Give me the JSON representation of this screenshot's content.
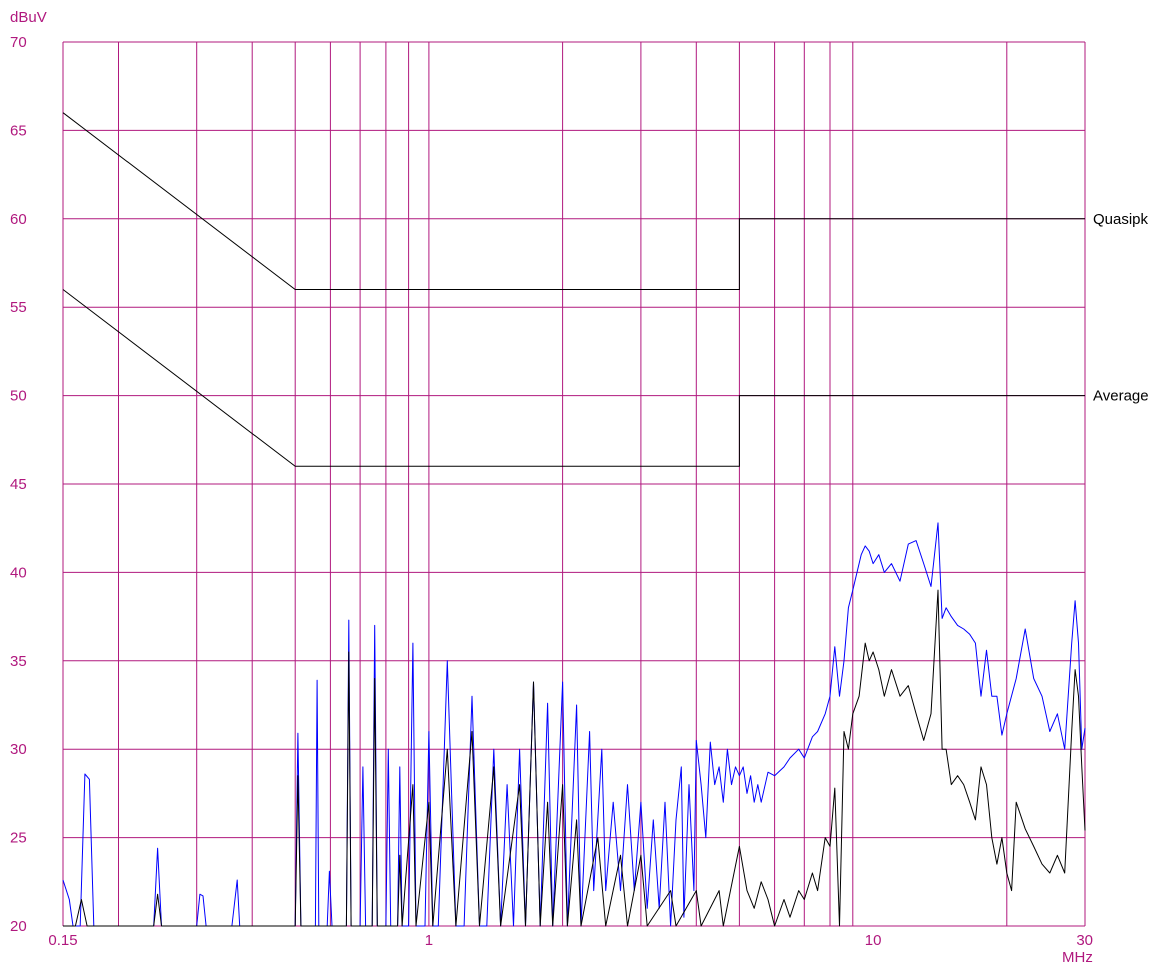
{
  "chart_data": {
    "type": "line",
    "title": "",
    "ylabel": "dBuV",
    "xlabel": "MHz",
    "x_scale": "log",
    "xlim": [
      0.15,
      30
    ],
    "ylim": [
      20,
      70
    ],
    "grid": true,
    "x_tick_labels": [
      "0.15",
      "1",
      "10",
      "30"
    ],
    "y_tick_labels": [
      "20",
      "25",
      "30",
      "35",
      "40",
      "45",
      "50",
      "55",
      "60",
      "65",
      "70"
    ],
    "colors": {
      "grid": "#b0187e",
      "axis_text": "#b0187e",
      "limit": "#000000",
      "peak": "#0000ff",
      "average_trace": "#000000"
    },
    "limits": [
      {
        "name": "Quasipk",
        "points": [
          [
            0.15,
            66
          ],
          [
            0.5,
            56
          ],
          [
            5,
            56
          ],
          [
            5,
            60
          ],
          [
            30,
            60
          ]
        ]
      },
      {
        "name": "Average",
        "points": [
          [
            0.15,
            56
          ],
          [
            0.5,
            46
          ],
          [
            5,
            46
          ],
          [
            5,
            50
          ],
          [
            30,
            50
          ]
        ]
      }
    ],
    "series": [
      {
        "color": "#0000ff",
        "points": [
          [
            0.15,
            22.6
          ],
          [
            0.155,
            21.5
          ],
          [
            0.158,
            20
          ],
          [
            0.164,
            20
          ],
          [
            0.168,
            28.6
          ],
          [
            0.172,
            28.3
          ],
          [
            0.176,
            20
          ],
          [
            0.24,
            20
          ],
          [
            0.245,
            24.4
          ],
          [
            0.25,
            20
          ],
          [
            0.3,
            20
          ],
          [
            0.305,
            21.8
          ],
          [
            0.31,
            21.7
          ],
          [
            0.315,
            20
          ],
          [
            0.36,
            20
          ],
          [
            0.37,
            22.6
          ],
          [
            0.375,
            20
          ],
          [
            0.5,
            20
          ],
          [
            0.507,
            30.9
          ],
          [
            0.515,
            20
          ],
          [
            0.555,
            20
          ],
          [
            0.56,
            33.9
          ],
          [
            0.565,
            20
          ],
          [
            0.59,
            20
          ],
          [
            0.597,
            23.1
          ],
          [
            0.605,
            20
          ],
          [
            0.652,
            20
          ],
          [
            0.66,
            37.3
          ],
          [
            0.668,
            20
          ],
          [
            0.7,
            20
          ],
          [
            0.71,
            29
          ],
          [
            0.72,
            20
          ],
          [
            0.745,
            20
          ],
          [
            0.755,
            37
          ],
          [
            0.765,
            20
          ],
          [
            0.8,
            20
          ],
          [
            0.81,
            30
          ],
          [
            0.82,
            20
          ],
          [
            0.85,
            20
          ],
          [
            0.86,
            29
          ],
          [
            0.87,
            20
          ],
          [
            0.9,
            20
          ],
          [
            0.92,
            36
          ],
          [
            0.935,
            20
          ],
          [
            0.98,
            20
          ],
          [
            1.0,
            31
          ],
          [
            1.02,
            20
          ],
          [
            1.05,
            20
          ],
          [
            1.1,
            35
          ],
          [
            1.15,
            20
          ],
          [
            1.2,
            20
          ],
          [
            1.25,
            33
          ],
          [
            1.3,
            20
          ],
          [
            1.35,
            20
          ],
          [
            1.4,
            30
          ],
          [
            1.45,
            20
          ],
          [
            1.5,
            28
          ],
          [
            1.55,
            20
          ],
          [
            1.6,
            30
          ],
          [
            1.65,
            20
          ],
          [
            1.72,
            33.8
          ],
          [
            1.78,
            20
          ],
          [
            1.85,
            32.6
          ],
          [
            1.9,
            20
          ],
          [
            2.0,
            33.8
          ],
          [
            2.05,
            20
          ],
          [
            2.15,
            32.5
          ],
          [
            2.2,
            20
          ],
          [
            2.3,
            31
          ],
          [
            2.35,
            22
          ],
          [
            2.45,
            30
          ],
          [
            2.5,
            22
          ],
          [
            2.6,
            27
          ],
          [
            2.7,
            22
          ],
          [
            2.8,
            28
          ],
          [
            2.9,
            22
          ],
          [
            3.0,
            27
          ],
          [
            3.1,
            21
          ],
          [
            3.2,
            26
          ],
          [
            3.3,
            21
          ],
          [
            3.4,
            27
          ],
          [
            3.5,
            20
          ],
          [
            3.6,
            26
          ],
          [
            3.7,
            29
          ],
          [
            3.75,
            20.5
          ],
          [
            3.85,
            28
          ],
          [
            3.95,
            22
          ],
          [
            4.0,
            30.5
          ],
          [
            4.1,
            28
          ],
          [
            4.2,
            25
          ],
          [
            4.3,
            30.4
          ],
          [
            4.4,
            28
          ],
          [
            4.5,
            29
          ],
          [
            4.6,
            27
          ],
          [
            4.7,
            30
          ],
          [
            4.8,
            28
          ],
          [
            4.9,
            29
          ],
          [
            5.0,
            28.5
          ],
          [
            5.1,
            29
          ],
          [
            5.2,
            27.5
          ],
          [
            5.3,
            28.5
          ],
          [
            5.4,
            27
          ],
          [
            5.5,
            28
          ],
          [
            5.6,
            27
          ],
          [
            5.8,
            28.7
          ],
          [
            6.0,
            28.5
          ],
          [
            6.3,
            29
          ],
          [
            6.5,
            29.5
          ],
          [
            6.8,
            30
          ],
          [
            7.0,
            29.5
          ],
          [
            7.3,
            30.7
          ],
          [
            7.5,
            31
          ],
          [
            7.8,
            32
          ],
          [
            8.0,
            33
          ],
          [
            8.2,
            35.8
          ],
          [
            8.4,
            33
          ],
          [
            8.6,
            35
          ],
          [
            8.8,
            38
          ],
          [
            9.0,
            39
          ],
          [
            9.2,
            40
          ],
          [
            9.4,
            41
          ],
          [
            9.6,
            41.5
          ],
          [
            9.8,
            41.2
          ],
          [
            10,
            40.5
          ],
          [
            10.3,
            41
          ],
          [
            10.6,
            40
          ],
          [
            11,
            40.5
          ],
          [
            11.5,
            39.5
          ],
          [
            12,
            41.6
          ],
          [
            12.5,
            41.8
          ],
          [
            13,
            40.5
          ],
          [
            13.5,
            39.2
          ],
          [
            14,
            42.8
          ],
          [
            14.3,
            37.4
          ],
          [
            14.6,
            38
          ],
          [
            15,
            37.5
          ],
          [
            15.5,
            37
          ],
          [
            16,
            36.8
          ],
          [
            16.5,
            36.5
          ],
          [
            17,
            36
          ],
          [
            17.5,
            33
          ],
          [
            18,
            35.6
          ],
          [
            18.5,
            33
          ],
          [
            19,
            33
          ],
          [
            19.5,
            30.8
          ],
          [
            20,
            32
          ],
          [
            21,
            34
          ],
          [
            22,
            36.8
          ],
          [
            23,
            34
          ],
          [
            24,
            33
          ],
          [
            25,
            31
          ],
          [
            26,
            32
          ],
          [
            27,
            30
          ],
          [
            28,
            36
          ],
          [
            28.5,
            38.4
          ],
          [
            29,
            36
          ],
          [
            29.5,
            30
          ],
          [
            30,
            31.2
          ]
        ]
      },
      {
        "color": "#000000",
        "points": [
          [
            0.15,
            20
          ],
          [
            0.16,
            20
          ],
          [
            0.165,
            21.5
          ],
          [
            0.17,
            20
          ],
          [
            0.24,
            20
          ],
          [
            0.245,
            21.8
          ],
          [
            0.25,
            20
          ],
          [
            0.5,
            20
          ],
          [
            0.507,
            28.5
          ],
          [
            0.515,
            20
          ],
          [
            0.555,
            20
          ],
          [
            0.56,
            20
          ],
          [
            0.652,
            20
          ],
          [
            0.66,
            35.5
          ],
          [
            0.668,
            20
          ],
          [
            0.745,
            20
          ],
          [
            0.755,
            34
          ],
          [
            0.765,
            20
          ],
          [
            0.85,
            20
          ],
          [
            0.86,
            24
          ],
          [
            0.87,
            20
          ],
          [
            0.92,
            28
          ],
          [
            0.935,
            20
          ],
          [
            1.0,
            27
          ],
          [
            1.02,
            20
          ],
          [
            1.1,
            30
          ],
          [
            1.15,
            20
          ],
          [
            1.25,
            31
          ],
          [
            1.3,
            20
          ],
          [
            1.4,
            29
          ],
          [
            1.45,
            20
          ],
          [
            1.6,
            28
          ],
          [
            1.65,
            20
          ],
          [
            1.72,
            33.8
          ],
          [
            1.78,
            20
          ],
          [
            1.85,
            27
          ],
          [
            1.9,
            20
          ],
          [
            2.0,
            28
          ],
          [
            2.05,
            20
          ],
          [
            2.15,
            26
          ],
          [
            2.2,
            20
          ],
          [
            2.4,
            25
          ],
          [
            2.5,
            20
          ],
          [
            2.7,
            24
          ],
          [
            2.8,
            20
          ],
          [
            3.0,
            24
          ],
          [
            3.1,
            20
          ],
          [
            3.5,
            22
          ],
          [
            3.6,
            20
          ],
          [
            4.0,
            22
          ],
          [
            4.1,
            20
          ],
          [
            4.5,
            22
          ],
          [
            4.6,
            20
          ],
          [
            5.0,
            24.5
          ],
          [
            5.2,
            22
          ],
          [
            5.4,
            21
          ],
          [
            5.6,
            22.5
          ],
          [
            5.8,
            21.5
          ],
          [
            6.0,
            20
          ],
          [
            6.3,
            21.5
          ],
          [
            6.5,
            20.5
          ],
          [
            6.8,
            22
          ],
          [
            7.0,
            21.5
          ],
          [
            7.3,
            23
          ],
          [
            7.5,
            22
          ],
          [
            7.8,
            25
          ],
          [
            8.0,
            24.5
          ],
          [
            8.2,
            27.8
          ],
          [
            8.4,
            20
          ],
          [
            8.6,
            31
          ],
          [
            8.8,
            30
          ],
          [
            9.0,
            32
          ],
          [
            9.3,
            33
          ],
          [
            9.6,
            36
          ],
          [
            9.8,
            35
          ],
          [
            10,
            35.5
          ],
          [
            10.3,
            34.5
          ],
          [
            10.6,
            33
          ],
          [
            11,
            34.5
          ],
          [
            11.5,
            33
          ],
          [
            12,
            33.6
          ],
          [
            12.5,
            32
          ],
          [
            13,
            30.5
          ],
          [
            13.5,
            32
          ],
          [
            14,
            39
          ],
          [
            14.3,
            30
          ],
          [
            14.6,
            30
          ],
          [
            15,
            28
          ],
          [
            15.5,
            28.5
          ],
          [
            16,
            28
          ],
          [
            16.5,
            27
          ],
          [
            17,
            26
          ],
          [
            17.5,
            29
          ],
          [
            18,
            28
          ],
          [
            18.5,
            25
          ],
          [
            19,
            23.5
          ],
          [
            19.5,
            25
          ],
          [
            20,
            23
          ],
          [
            20.5,
            22
          ],
          [
            21,
            27
          ],
          [
            22,
            25.5
          ],
          [
            23,
            24.5
          ],
          [
            24,
            23.5
          ],
          [
            25,
            23
          ],
          [
            26,
            24
          ],
          [
            27,
            23
          ],
          [
            28,
            31
          ],
          [
            28.5,
            34.5
          ],
          [
            29,
            33
          ],
          [
            29.5,
            29
          ],
          [
            30,
            25.4
          ]
        ]
      }
    ]
  }
}
